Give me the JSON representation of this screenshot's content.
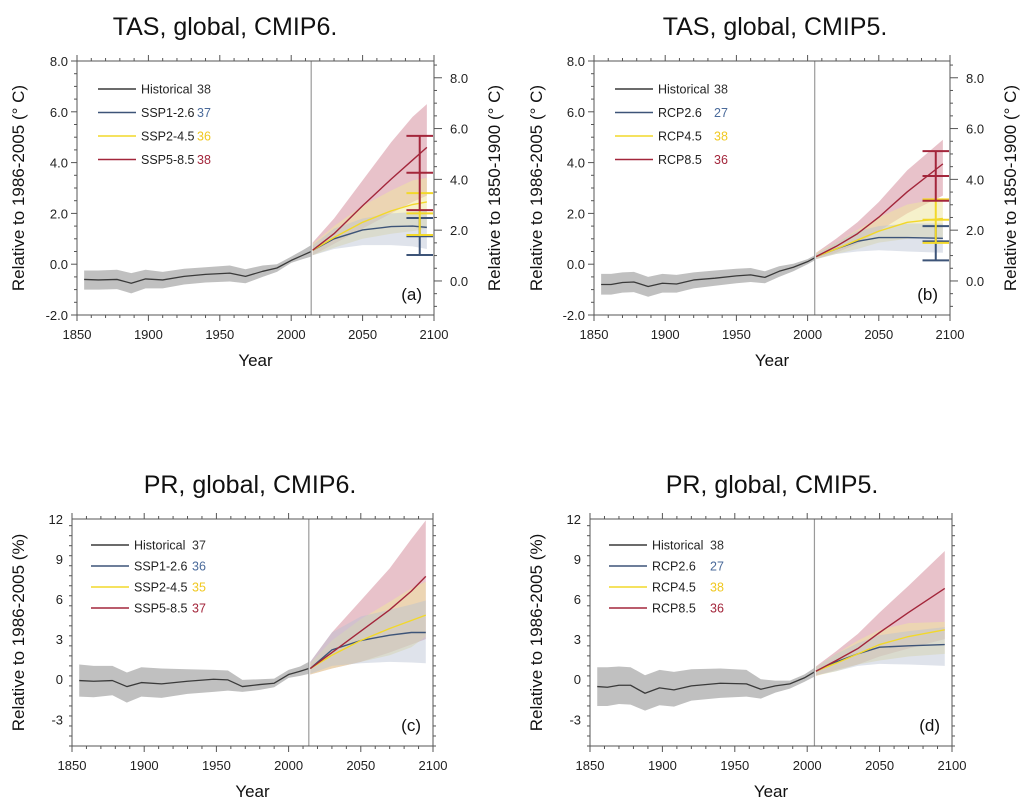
{
  "colors": {
    "historical": "#3a3a3a",
    "historical_band": "#bdbdbd",
    "low": "#3d5478",
    "low_band": "#b7c2d2",
    "mid": "#f2d82a",
    "mid_band": "#eee6a0",
    "high": "#a3263b",
    "high_band": "#d99aa6",
    "count_low": "#4a6a9a",
    "count_mid": "#f0c820",
    "count_high": "#a3263b",
    "count_hist": "#333333",
    "divider": "#9a9a9a"
  },
  "chart_data": [
    {
      "id": "a",
      "type": "line",
      "title": "TAS, global, CMIP6.",
      "panel_label": "(a)",
      "xlabel": "Year",
      "ylabel": "Relative to 1986-2005 (° C)",
      "ylabel_right": "Relative to 1850-1900 (° C)",
      "xlim": [
        1850,
        2100
      ],
      "ylim": [
        -2,
        8
      ],
      "xticks": [
        1850,
        1900,
        1950,
        2000,
        2050,
        2100
      ],
      "yticks": [
        -2,
        0,
        2,
        4,
        6,
        8
      ],
      "ytick_labels": [
        "-2.0",
        "0.0",
        "2.0",
        "4.0",
        "6.0",
        "8.0"
      ],
      "right_axis_offset": 0.66,
      "yticks_right": [
        0,
        2,
        4,
        6,
        8
      ],
      "ytick_labels_right": [
        "0.0",
        "2.0",
        "4.0",
        "6.0",
        "8.0"
      ],
      "divider_year": 2014,
      "legend": [
        {
          "key": "historical",
          "label": "Historical",
          "count": "38"
        },
        {
          "key": "low",
          "label": "SSP1-2.6",
          "count": "37"
        },
        {
          "key": "mid",
          "label": "SSP2-4.5",
          "count": "36"
        },
        {
          "key": "high",
          "label": "SSP5-8.5",
          "count": "38"
        }
      ],
      "historical": {
        "x": [
          1855,
          1865,
          1878,
          1888,
          1898,
          1910,
          1925,
          1940,
          1957,
          1968,
          1980,
          1990,
          2000,
          2008,
          2014
        ],
        "y": [
          -0.6,
          -0.62,
          -0.6,
          -0.75,
          -0.58,
          -0.62,
          -0.48,
          -0.4,
          -0.35,
          -0.48,
          -0.28,
          -0.15,
          0.15,
          0.35,
          0.5
        ],
        "lo": [
          -1.0,
          -1.0,
          -0.98,
          -1.15,
          -0.95,
          -0.95,
          -0.8,
          -0.72,
          -0.68,
          -0.75,
          -0.5,
          -0.3,
          0.05,
          0.2,
          0.3
        ],
        "hi": [
          -0.25,
          -0.25,
          -0.22,
          -0.35,
          -0.22,
          -0.3,
          -0.18,
          -0.12,
          -0.05,
          -0.2,
          -0.05,
          0.0,
          0.3,
          0.55,
          0.75
        ]
      },
      "scenarios": [
        {
          "key": "low",
          "x": [
            2015,
            2030,
            2050,
            2070,
            2085,
            2095
          ],
          "y": [
            0.55,
            1.0,
            1.35,
            1.48,
            1.5,
            1.45
          ],
          "lo": [
            0.35,
            0.6,
            0.75,
            0.75,
            0.7,
            0.6
          ],
          "hi": [
            0.75,
            1.4,
            1.8,
            2.0,
            2.05,
            2.1
          ]
        },
        {
          "key": "mid",
          "x": [
            2015,
            2030,
            2050,
            2070,
            2085,
            2095
          ],
          "y": [
            0.55,
            1.05,
            1.65,
            2.1,
            2.35,
            2.45
          ],
          "lo": [
            0.35,
            0.65,
            1.0,
            1.2,
            1.3,
            1.4
          ],
          "hi": [
            0.8,
            1.5,
            2.3,
            2.9,
            3.3,
            3.4
          ]
        },
        {
          "key": "high",
          "x": [
            2015,
            2030,
            2050,
            2070,
            2085,
            2095
          ],
          "y": [
            0.55,
            1.2,
            2.3,
            3.35,
            4.1,
            4.6
          ],
          "lo": [
            0.35,
            0.8,
            1.4,
            2.0,
            2.45,
            2.7
          ],
          "hi": [
            0.85,
            1.8,
            3.3,
            4.8,
            5.8,
            6.3
          ]
        }
      ],
      "error_bars": [
        {
          "key": "low",
          "low": 0.36,
          "mid": 1.1,
          "high": 1.82
        },
        {
          "key": "mid",
          "low": 1.15,
          "mid": 2.0,
          "high": 2.8
        },
        {
          "key": "high",
          "low": 2.13,
          "mid": 3.6,
          "high": 5.05
        }
      ],
      "error_bar_year": 2090
    },
    {
      "id": "b",
      "type": "line",
      "title": "TAS, global, CMIP5.",
      "panel_label": "(b)",
      "xlabel": "Year",
      "ylabel": "Relative to 1986-2005 (° C)",
      "ylabel_right": "Relative to 1850-1900 (° C)",
      "xlim": [
        1850,
        2100
      ],
      "ylim": [
        -2,
        8
      ],
      "xticks": [
        1850,
        1900,
        1950,
        2000,
        2050,
        2100
      ],
      "yticks": [
        -2,
        0,
        2,
        4,
        6,
        8
      ],
      "ytick_labels": [
        "-2.0",
        "0.0",
        "2.0",
        "4.0",
        "6.0",
        "8.0"
      ],
      "right_axis_offset": 0.66,
      "yticks_right": [
        0,
        2,
        4,
        6,
        8
      ],
      "ytick_labels_right": [
        "0.0",
        "2.0",
        "4.0",
        "6.0",
        "8.0"
      ],
      "divider_year": 2005,
      "legend": [
        {
          "key": "historical",
          "label": "Historical",
          "count": "38"
        },
        {
          "key": "low",
          "label": "RCP2.6",
          "count": "27"
        },
        {
          "key": "mid",
          "label": "RCP4.5",
          "count": "38"
        },
        {
          "key": "high",
          "label": "RCP8.5",
          "count": "36"
        }
      ],
      "historical": {
        "x": [
          1855,
          1862,
          1870,
          1878,
          1888,
          1898,
          1908,
          1920,
          1935,
          1950,
          1960,
          1970,
          1980,
          1990,
          2000,
          2005
        ],
        "y": [
          -0.8,
          -0.8,
          -0.72,
          -0.7,
          -0.88,
          -0.75,
          -0.78,
          -0.62,
          -0.55,
          -0.46,
          -0.42,
          -0.52,
          -0.28,
          -0.12,
          0.1,
          0.25
        ],
        "lo": [
          -1.2,
          -1.2,
          -1.12,
          -1.1,
          -1.28,
          -1.12,
          -1.12,
          -0.95,
          -0.85,
          -0.75,
          -0.7,
          -0.75,
          -0.5,
          -0.28,
          0.0,
          0.15
        ],
        "hi": [
          -0.38,
          -0.38,
          -0.32,
          -0.3,
          -0.5,
          -0.38,
          -0.42,
          -0.32,
          -0.25,
          -0.18,
          -0.15,
          -0.28,
          -0.08,
          0.02,
          0.2,
          0.35
        ]
      },
      "scenarios": [
        {
          "key": "low",
          "x": [
            2006,
            2020,
            2035,
            2050,
            2070,
            2095
          ],
          "y": [
            0.3,
            0.6,
            0.9,
            1.05,
            1.05,
            1.02
          ],
          "lo": [
            0.2,
            0.4,
            0.5,
            0.55,
            0.5,
            0.45
          ],
          "hi": [
            0.4,
            0.85,
            1.3,
            1.5,
            1.6,
            1.6
          ]
        },
        {
          "key": "mid",
          "x": [
            2006,
            2020,
            2035,
            2050,
            2070,
            2095
          ],
          "y": [
            0.3,
            0.6,
            0.95,
            1.3,
            1.65,
            1.8
          ],
          "lo": [
            0.2,
            0.4,
            0.6,
            0.85,
            1.0,
            1.05
          ],
          "hi": [
            0.45,
            0.85,
            1.35,
            1.85,
            2.35,
            2.6
          ]
        },
        {
          "key": "high",
          "x": [
            2006,
            2020,
            2035,
            2050,
            2070,
            2095
          ],
          "y": [
            0.3,
            0.7,
            1.2,
            1.85,
            2.85,
            3.95
          ],
          "lo": [
            0.2,
            0.45,
            0.8,
            1.3,
            2.0,
            2.7
          ],
          "hi": [
            0.45,
            1.0,
            1.65,
            2.45,
            3.7,
            4.9
          ]
        }
      ],
      "error_bars": [
        {
          "key": "low",
          "low": 0.15,
          "mid": 0.9,
          "high": 1.5
        },
        {
          "key": "mid",
          "low": 0.84,
          "mid": 1.75,
          "high": 2.55
        },
        {
          "key": "high",
          "low": 2.5,
          "mid": 3.47,
          "high": 4.45
        }
      ],
      "error_bar_year": 2090
    },
    {
      "id": "c",
      "type": "line",
      "title": "PR, global, CMIP6.",
      "panel_label": "(c)",
      "xlabel": "Year",
      "ylabel": "Relative to 1986-2005 (%)",
      "xlim": [
        1850,
        2100
      ],
      "ylim": [
        -5,
        12
      ],
      "xticks": [
        1850,
        1900,
        1950,
        2000,
        2050,
        2100
      ],
      "yticks": [
        -3,
        0,
        3,
        6,
        9,
        12
      ],
      "ytick_labels": [
        "-3",
        "0",
        "3",
        "6",
        "9",
        "12"
      ],
      "divider_year": 2014,
      "legend": [
        {
          "key": "historical",
          "label": "Historical",
          "count": "37"
        },
        {
          "key": "low",
          "label": "SSP1-2.6",
          "count": "36"
        },
        {
          "key": "mid",
          "label": "SSP2-4.5",
          "count": "35"
        },
        {
          "key": "high",
          "label": "SSP5-8.5",
          "count": "37"
        }
      ],
      "historical": {
        "x": [
          1855,
          1865,
          1878,
          1888,
          1898,
          1912,
          1930,
          1948,
          1958,
          1968,
          1980,
          1990,
          2000,
          2008,
          2014
        ],
        "y": [
          -0.1,
          -0.15,
          -0.1,
          -0.55,
          -0.25,
          -0.35,
          -0.15,
          0.0,
          -0.05,
          -0.55,
          -0.4,
          -0.3,
          0.35,
          0.6,
          0.8
        ],
        "lo": [
          -1.3,
          -1.35,
          -1.2,
          -1.75,
          -1.3,
          -1.4,
          -1.1,
          -0.95,
          -0.85,
          -0.95,
          -0.8,
          -0.6,
          0.1,
          0.25,
          0.4
        ],
        "hi": [
          1.1,
          1.0,
          1.0,
          0.5,
          0.9,
          0.8,
          0.75,
          0.7,
          0.65,
          -0.05,
          0.0,
          0.05,
          0.7,
          0.95,
          1.3
        ]
      },
      "scenarios": [
        {
          "key": "low",
          "x": [
            2015,
            2030,
            2050,
            2070,
            2085,
            2095
          ],
          "y": [
            0.8,
            2.2,
            2.9,
            3.3,
            3.5,
            3.5
          ],
          "lo": [
            0.4,
            1.0,
            1.2,
            1.3,
            1.25,
            1.2
          ],
          "hi": [
            1.3,
            3.5,
            4.7,
            5.2,
            5.6,
            5.9
          ]
        },
        {
          "key": "mid",
          "x": [
            2015,
            2030,
            2050,
            2070,
            2085,
            2095
          ],
          "y": [
            0.8,
            1.8,
            2.9,
            3.8,
            4.4,
            4.8
          ],
          "lo": [
            0.35,
            0.8,
            1.3,
            1.8,
            2.4,
            3.2
          ],
          "hi": [
            1.2,
            2.9,
            4.5,
            5.8,
            6.8,
            7.3
          ]
        },
        {
          "key": "high",
          "x": [
            2015,
            2030,
            2050,
            2070,
            2085,
            2095
          ],
          "y": [
            0.8,
            2.0,
            3.6,
            5.2,
            6.6,
            7.7
          ],
          "lo": [
            0.35,
            0.8,
            1.3,
            2.0,
            2.6,
            3.0
          ],
          "hi": [
            1.3,
            3.5,
            5.9,
            8.3,
            10.5,
            11.9
          ]
        }
      ]
    },
    {
      "id": "d",
      "type": "line",
      "title": "PR, global, CMIP5.",
      "panel_label": "(d)",
      "xlabel": "Year",
      "ylabel": "Relative to 1986-2005 (%)",
      "xlim": [
        1850,
        2100
      ],
      "ylim": [
        -5,
        12
      ],
      "xticks": [
        1850,
        1900,
        1950,
        2000,
        2050,
        2100
      ],
      "yticks": [
        -3,
        0,
        3,
        6,
        9,
        12
      ],
      "ytick_labels": [
        "-3",
        "0",
        "3",
        "6",
        "9",
        "12"
      ],
      "divider_year": 2005,
      "legend": [
        {
          "key": "historical",
          "label": "Historical",
          "count": "38"
        },
        {
          "key": "low",
          "label": "RCP2.6",
          "count": "27"
        },
        {
          "key": "mid",
          "label": "RCP4.5",
          "count": "38"
        },
        {
          "key": "high",
          "label": "RCP8.5",
          "count": "36"
        }
      ],
      "historical": {
        "x": [
          1855,
          1862,
          1870,
          1878,
          1888,
          1898,
          1908,
          1920,
          1940,
          1958,
          1968,
          1978,
          1988,
          1998,
          2005
        ],
        "y": [
          -0.55,
          -0.6,
          -0.45,
          -0.45,
          -1.05,
          -0.65,
          -0.8,
          -0.5,
          -0.3,
          -0.35,
          -0.75,
          -0.5,
          -0.35,
          0.1,
          0.55
        ],
        "lo": [
          -2.0,
          -2.0,
          -1.85,
          -1.9,
          -2.35,
          -1.95,
          -2.05,
          -1.6,
          -1.4,
          -1.3,
          -1.45,
          -1.0,
          -0.7,
          -0.2,
          0.2
        ],
        "hi": [
          0.9,
          0.9,
          0.95,
          0.9,
          0.3,
          0.7,
          0.55,
          0.75,
          0.8,
          0.7,
          0.0,
          -0.1,
          -0.1,
          0.35,
          0.85
        ]
      },
      "scenarios": [
        {
          "key": "low",
          "x": [
            2006,
            2020,
            2035,
            2050,
            2070,
            2095
          ],
          "y": [
            0.6,
            1.3,
            1.9,
            2.4,
            2.5,
            2.6
          ],
          "lo": [
            0.3,
            0.6,
            1.0,
            1.15,
            1.1,
            1.0
          ],
          "hi": [
            0.9,
            1.9,
            2.7,
            3.3,
            3.6,
            3.9
          ]
        },
        {
          "key": "mid",
          "x": [
            2006,
            2020,
            2035,
            2050,
            2070,
            2095
          ],
          "y": [
            0.6,
            1.2,
            1.9,
            2.6,
            3.2,
            3.7
          ],
          "lo": [
            0.25,
            0.6,
            1.1,
            1.4,
            1.7,
            1.9
          ],
          "hi": [
            0.9,
            1.9,
            2.9,
            3.7,
            4.2,
            4.3
          ]
        },
        {
          "key": "high",
          "x": [
            2006,
            2020,
            2035,
            2050,
            2070,
            2095
          ],
          "y": [
            0.6,
            1.4,
            2.3,
            3.5,
            5.0,
            6.8
          ],
          "lo": [
            0.25,
            0.7,
            1.1,
            1.7,
            2.3,
            3.0
          ],
          "hi": [
            0.95,
            2.1,
            3.4,
            5.0,
            7.0,
            9.6
          ]
        }
      ]
    }
  ]
}
